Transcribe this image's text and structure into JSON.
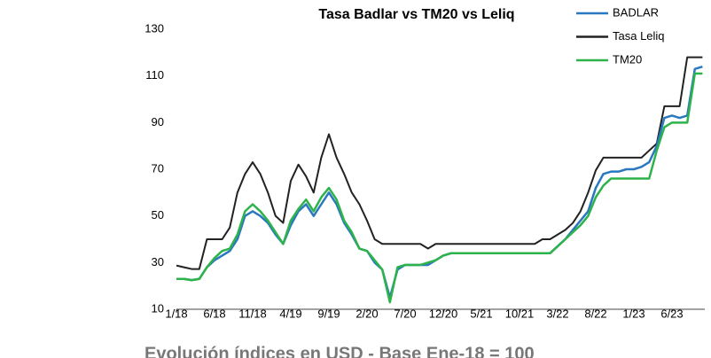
{
  "chart_data": {
    "type": "line",
    "title": "Tasa Badlar vs TM20 vs Leliq",
    "categories": [
      "1/18",
      null,
      null,
      null,
      null,
      "6/18",
      null,
      null,
      null,
      null,
      "11/18",
      null,
      null,
      null,
      null,
      "4/19",
      null,
      null,
      null,
      null,
      "9/19",
      null,
      null,
      null,
      null,
      "2/20",
      null,
      null,
      null,
      null,
      "7/20",
      null,
      null,
      null,
      null,
      "12/20",
      null,
      null,
      null,
      null,
      "5/21",
      null,
      null,
      null,
      null,
      "10/21",
      null,
      null,
      null,
      null,
      "3/22",
      null,
      null,
      null,
      null,
      "8/22",
      null,
      null,
      null,
      null,
      "1/23",
      null,
      null,
      null,
      null,
      "6/23",
      null,
      null,
      null,
      null
    ],
    "series": [
      {
        "name": "BADLAR",
        "color": "#2a78c0",
        "values": [
          23,
          23,
          22.5,
          23,
          28,
          31,
          33,
          35,
          40,
          50,
          52,
          50,
          47,
          42,
          38,
          46,
          52,
          55,
          50,
          55,
          60,
          55,
          47,
          42,
          36,
          35,
          30,
          27,
          15,
          27,
          29,
          29,
          29,
          29,
          31,
          33,
          34,
          34,
          34,
          34,
          34,
          34,
          34,
          34,
          34,
          34,
          34,
          34,
          34,
          34,
          37,
          40,
          44,
          48,
          52,
          62,
          68,
          69,
          69,
          70,
          70,
          71,
          73,
          80,
          92,
          93,
          92,
          93,
          113,
          114
        ]
      },
      {
        "name": "Tasa Leliq",
        "color": "#222222",
        "values": [
          28.75,
          28,
          27.25,
          27.25,
          40,
          40,
          40,
          45,
          60,
          68,
          73,
          68,
          60,
          50,
          47,
          65,
          72,
          67,
          60,
          75,
          85,
          75,
          68,
          60,
          55,
          48,
          40,
          38,
          38,
          38,
          38,
          38,
          38,
          36,
          38,
          38,
          38,
          38,
          38,
          38,
          38,
          38,
          38,
          38,
          38,
          38,
          38,
          38,
          40,
          40,
          42,
          44,
          47,
          52,
          60,
          69.5,
          75,
          75,
          75,
          75,
          75,
          75,
          78,
          81,
          97,
          97,
          97,
          118,
          118,
          118
        ]
      },
      {
        "name": "TM20",
        "color": "#2db34a",
        "values": [
          23,
          23,
          22.5,
          23,
          28,
          32,
          35,
          36,
          42,
          52,
          55,
          52,
          48,
          43,
          38,
          48,
          53,
          57,
          52,
          58,
          62,
          57,
          48,
          43,
          36,
          35,
          31,
          27,
          13,
          28,
          29,
          29,
          29,
          30,
          31,
          33,
          34,
          34,
          34,
          34,
          34,
          34,
          34,
          34,
          34,
          34,
          34,
          34,
          34,
          34,
          37,
          40,
          43,
          46,
          50,
          58,
          63,
          66,
          66,
          66,
          66,
          66,
          66,
          78,
          88,
          90,
          90,
          90,
          111,
          111
        ]
      }
    ],
    "ylim": [
      10,
      130
    ],
    "yticks": [
      10,
      30,
      50,
      70,
      90,
      110,
      130
    ],
    "grid": false,
    "footer": "Evolución índices en USD - Base Ene-18 = 100"
  }
}
